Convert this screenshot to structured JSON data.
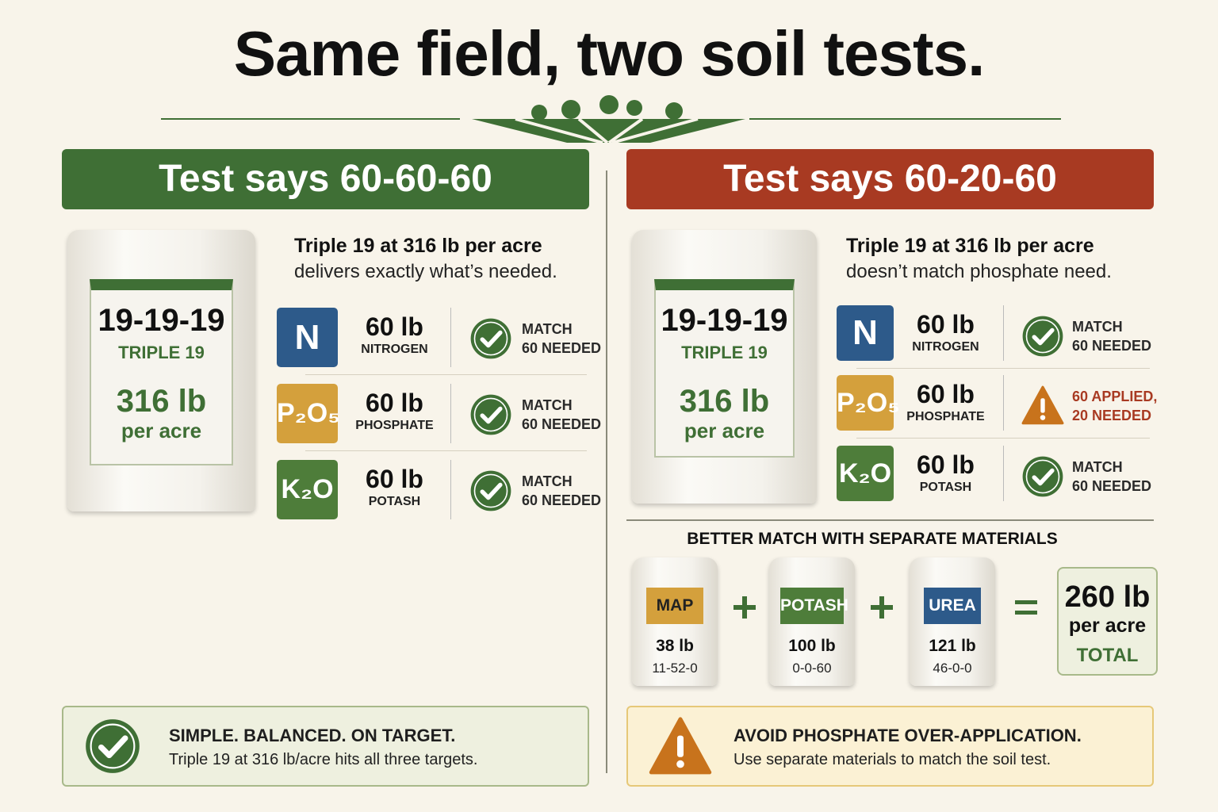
{
  "title": "Same field, two soil tests.",
  "panels": [
    {
      "heading": "Test says 60-60-60",
      "color": "#3f6f35",
      "intro": [
        "Triple 19 at 316 lb per acre",
        "delivers exactly what’s needed."
      ],
      "bag": {
        "grade": "19-19-19",
        "name": "TRIPLE 19",
        "rate": "316 lb",
        "unit": "per acre"
      },
      "nutrients": [
        {
          "symbol": "N",
          "color": "#2d5a8a",
          "amount": "60 lb",
          "name": "NITROGEN",
          "icon": "check",
          "status": [
            "MATCH",
            "60 NEEDED"
          ]
        },
        {
          "symbol": "P₂O₅",
          "color": "#d4a03c",
          "amount": "60 lb",
          "name": "PHOSPHATE",
          "icon": "check",
          "status": [
            "MATCH",
            "60 NEEDED"
          ]
        },
        {
          "symbol": "K₂O",
          "color": "#4e7d3a",
          "amount": "60 lb",
          "name": "POTASH",
          "icon": "check",
          "status": [
            "MATCH",
            "60 NEEDED"
          ]
        }
      ],
      "callout": {
        "icon": "check",
        "title": "SIMPLE. BALANCED. ON TARGET.",
        "text": "Triple 19 at 316 lb/acre hits all three targets."
      }
    },
    {
      "heading": "Test says 60-20-60",
      "color": "#a83a22",
      "intro": [
        "Triple 19 at 316 lb per acre",
        "doesn’t match phosphate need."
      ],
      "bag": {
        "grade": "19-19-19",
        "name": "TRIPLE 19",
        "rate": "316 lb",
        "unit": "per acre"
      },
      "nutrients": [
        {
          "symbol": "N",
          "color": "#2d5a8a",
          "amount": "60 lb",
          "name": "NITROGEN",
          "icon": "check",
          "status": [
            "MATCH",
            "60 NEEDED"
          ]
        },
        {
          "symbol": "P₂O₅",
          "color": "#d4a03c",
          "amount": "60 lb",
          "name": "PHOSPHATE",
          "icon": "warning",
          "status": [
            "60 APPLIED,",
            "20 NEEDED"
          ]
        },
        {
          "symbol": "K₂O",
          "color": "#4e7d3a",
          "amount": "60 lb",
          "name": "POTASH",
          "icon": "check",
          "status": [
            "MATCH",
            "60 NEEDED"
          ]
        }
      ],
      "callout": {
        "icon": "warning",
        "title": "AVOID PHOSPHATE OVER-APPLICATION.",
        "text": "Use separate materials to match the soil test."
      }
    }
  ],
  "alternative": {
    "title": "BETTER MATCH WITH SEPARATE MATERIALS",
    "materials": [
      {
        "label": "MAP",
        "color": "#d4a03c",
        "amount": "38 lb",
        "grade": "11-52-0"
      },
      {
        "label": "POTASH",
        "color": "#4e7d3a",
        "amount": "100 lb",
        "grade": "0-0-60"
      },
      {
        "label": "UREA",
        "color": "#2d5a8a",
        "amount": "121 lb",
        "grade": "46-0-0"
      }
    ],
    "total": {
      "amount": "260 lb",
      "unit": "per acre",
      "label": "TOTAL"
    }
  }
}
